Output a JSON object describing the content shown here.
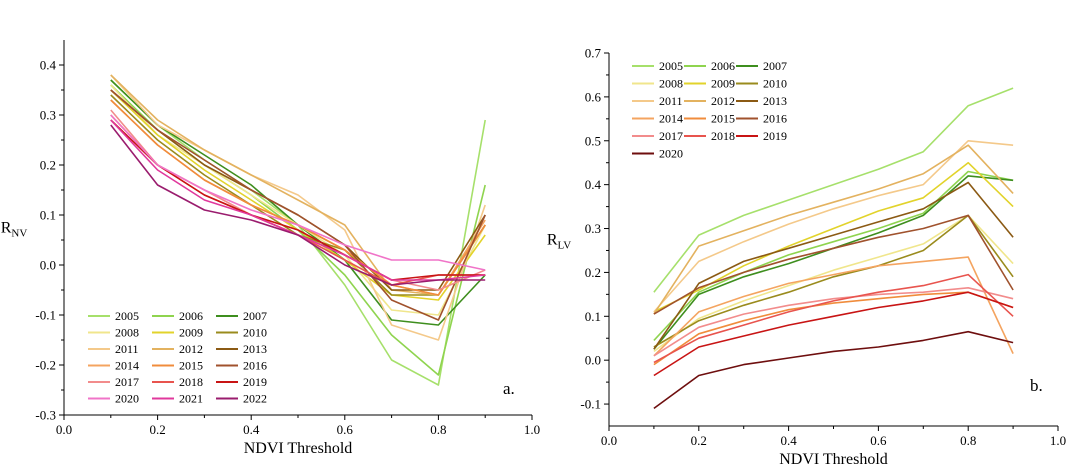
{
  "chart_data": [
    {
      "type": "line",
      "panel_label": "a.",
      "xlabel": "NDVI Threshold",
      "ylabel": "R",
      "ylabel_sub": "NV",
      "xlim": [
        0.0,
        1.0
      ],
      "ylim": [
        -0.3,
        0.45
      ],
      "xticks": [
        "0.0",
        "0.2",
        "0.4",
        "0.6",
        "0.8",
        "1.0"
      ],
      "yticks": [
        "-0.3",
        "-0.2",
        "-0.1",
        "0.0",
        "0.1",
        "0.2",
        "0.3",
        "0.4"
      ],
      "grid": false,
      "legend_position": "bottom-left",
      "legend_columns": 3,
      "x": [
        0.1,
        0.2,
        0.3,
        0.4,
        0.5,
        0.6,
        0.7,
        0.8,
        0.9
      ],
      "series": [
        {
          "name": "2005",
          "color": "#a6e06b",
          "values": [
            0.37,
            0.28,
            0.21,
            0.15,
            0.08,
            -0.04,
            -0.19,
            -0.24,
            0.29
          ]
        },
        {
          "name": "2006",
          "color": "#8fd44f",
          "values": [
            0.36,
            0.27,
            0.2,
            0.14,
            0.07,
            -0.02,
            -0.14,
            -0.22,
            0.16
          ]
        },
        {
          "name": "2007",
          "color": "#3e8e1e",
          "values": [
            0.37,
            0.28,
            0.22,
            0.16,
            0.08,
            0.01,
            -0.11,
            -0.12,
            -0.02
          ]
        },
        {
          "name": "2008",
          "color": "#f0e68c",
          "values": [
            0.36,
            0.26,
            0.2,
            0.14,
            0.08,
            0.02,
            -0.09,
            -0.1,
            0.08
          ]
        },
        {
          "name": "2009",
          "color": "#e2d32b",
          "values": [
            0.35,
            0.26,
            0.19,
            0.13,
            0.07,
            0.01,
            -0.06,
            -0.07,
            0.06
          ]
        },
        {
          "name": "2010",
          "color": "#9a8b1d",
          "values": [
            0.34,
            0.25,
            0.18,
            0.12,
            0.06,
            0.03,
            -0.06,
            -0.06,
            0.08
          ]
        },
        {
          "name": "2011",
          "color": "#f4c98a",
          "values": [
            0.38,
            0.28,
            0.23,
            0.18,
            0.14,
            0.07,
            -0.12,
            -0.15,
            0.12
          ]
        },
        {
          "name": "2012",
          "color": "#e3b25f",
          "values": [
            0.38,
            0.29,
            0.23,
            0.18,
            0.13,
            0.08,
            -0.05,
            -0.06,
            0.08
          ]
        },
        {
          "name": "2013",
          "color": "#8b5a14",
          "values": [
            0.35,
            0.27,
            0.2,
            0.15,
            0.1,
            0.04,
            -0.05,
            -0.05,
            0.1
          ]
        },
        {
          "name": "2014",
          "color": "#f4a460",
          "values": [
            0.33,
            0.24,
            0.17,
            0.12,
            0.08,
            0.03,
            -0.04,
            -0.06,
            0.09
          ]
        },
        {
          "name": "2015",
          "color": "#f08c3c",
          "values": [
            0.33,
            0.24,
            0.17,
            0.12,
            0.08,
            0.03,
            -0.04,
            -0.06,
            0.08
          ]
        },
        {
          "name": "2016",
          "color": "#a0522d",
          "values": [
            0.35,
            0.27,
            0.21,
            0.15,
            0.1,
            0.04,
            -0.07,
            -0.11,
            0.1
          ]
        },
        {
          "name": "2017",
          "color": "#f28c8c",
          "values": [
            0.31,
            0.2,
            0.15,
            0.1,
            0.06,
            0.02,
            -0.03,
            -0.05,
            -0.01
          ]
        },
        {
          "name": "2018",
          "color": "#e8544e",
          "values": [
            0.3,
            0.2,
            0.14,
            0.1,
            0.06,
            0.01,
            -0.04,
            -0.02,
            -0.02
          ]
        },
        {
          "name": "2019",
          "color": "#c81414",
          "values": [
            0.29,
            0.2,
            0.14,
            0.1,
            0.07,
            0.02,
            -0.03,
            -0.02,
            -0.02
          ]
        },
        {
          "name": "2020",
          "color": "#f074c8",
          "values": [
            0.3,
            0.2,
            0.15,
            0.11,
            0.08,
            0.04,
            0.01,
            0.01,
            -0.01
          ]
        },
        {
          "name": "2021",
          "color": "#e0389c",
          "values": [
            0.29,
            0.19,
            0.13,
            0.1,
            0.06,
            0.02,
            -0.03,
            -0.03,
            -0.02
          ]
        },
        {
          "name": "2022",
          "color": "#9a1c6e",
          "values": [
            0.28,
            0.16,
            0.11,
            0.09,
            0.06,
            0.0,
            -0.04,
            -0.03,
            -0.03
          ]
        }
      ]
    },
    {
      "type": "line",
      "panel_label": "b.",
      "xlabel": "NDVI Threshold",
      "ylabel": "R",
      "ylabel_sub": "LV",
      "xlim": [
        0.0,
        1.0
      ],
      "ylim": [
        -0.15,
        0.7
      ],
      "xticks": [
        "0.0",
        "0.2",
        "0.4",
        "0.6",
        "0.8",
        "1.0"
      ],
      "yticks": [
        "-0.1",
        "0.0",
        "0.1",
        "0.2",
        "0.3",
        "0.4",
        "0.5",
        "0.6",
        "0.7"
      ],
      "grid": false,
      "legend_position": "top-left",
      "legend_columns": 3,
      "x": [
        0.1,
        0.2,
        0.3,
        0.4,
        0.5,
        0.6,
        0.7,
        0.8,
        0.9
      ],
      "series": [
        {
          "name": "2005",
          "color": "#a6e06b",
          "values": [
            0.155,
            0.285,
            0.33,
            0.365,
            0.4,
            0.435,
            0.475,
            0.58,
            0.62
          ]
        },
        {
          "name": "2006",
          "color": "#8fd44f",
          "values": [
            0.045,
            0.155,
            0.2,
            0.24,
            0.27,
            0.3,
            0.335,
            0.43,
            0.41
          ]
        },
        {
          "name": "2007",
          "color": "#3e8e1e",
          "values": [
            0.025,
            0.15,
            0.19,
            0.22,
            0.255,
            0.29,
            0.33,
            0.42,
            0.41
          ]
        },
        {
          "name": "2008",
          "color": "#f0e68c",
          "values": [
            0.02,
            0.095,
            0.135,
            0.17,
            0.205,
            0.235,
            0.265,
            0.33,
            0.22
          ]
        },
        {
          "name": "2009",
          "color": "#e2d32b",
          "values": [
            0.11,
            0.16,
            0.215,
            0.26,
            0.3,
            0.34,
            0.37,
            0.45,
            0.35
          ]
        },
        {
          "name": "2010",
          "color": "#9a8b1d",
          "values": [
            0.03,
            0.09,
            0.125,
            0.155,
            0.19,
            0.215,
            0.25,
            0.33,
            0.19
          ]
        },
        {
          "name": "2011",
          "color": "#f4c98a",
          "values": [
            0.11,
            0.225,
            0.27,
            0.31,
            0.345,
            0.375,
            0.4,
            0.5,
            0.49
          ]
        },
        {
          "name": "2012",
          "color": "#e3b25f",
          "values": [
            0.105,
            0.26,
            0.295,
            0.33,
            0.36,
            0.39,
            0.425,
            0.49,
            0.38
          ]
        },
        {
          "name": "2013",
          "color": "#8b5a14",
          "values": [
            0.025,
            0.175,
            0.225,
            0.255,
            0.285,
            0.315,
            0.345,
            0.405,
            0.28
          ]
        },
        {
          "name": "2014",
          "color": "#f4a460",
          "values": [
            0.01,
            0.11,
            0.145,
            0.175,
            0.195,
            0.215,
            0.225,
            0.235,
            0.015
          ]
        },
        {
          "name": "2015",
          "color": "#f08c3c",
          "values": [
            -0.01,
            0.06,
            0.09,
            0.115,
            0.13,
            0.14,
            0.15,
            0.155,
            0.12
          ]
        },
        {
          "name": "2016",
          "color": "#a0522d",
          "values": [
            0.105,
            0.165,
            0.2,
            0.23,
            0.255,
            0.28,
            0.3,
            0.33,
            0.16
          ]
        },
        {
          "name": "2017",
          "color": "#f28c8c",
          "values": [
            0.01,
            0.075,
            0.105,
            0.125,
            0.14,
            0.15,
            0.155,
            0.165,
            0.14
          ]
        },
        {
          "name": "2018",
          "color": "#e8544e",
          "values": [
            -0.005,
            0.05,
            0.08,
            0.11,
            0.135,
            0.155,
            0.17,
            0.195,
            0.1
          ]
        },
        {
          "name": "2019",
          "color": "#c81414",
          "values": [
            -0.035,
            0.03,
            0.055,
            0.08,
            0.1,
            0.12,
            0.135,
            0.155,
            0.12
          ]
        },
        {
          "name": "2020",
          "color": "#6e0e0e",
          "values": [
            -0.11,
            -0.035,
            -0.01,
            0.005,
            0.02,
            0.03,
            0.045,
            0.065,
            0.04
          ]
        }
      ]
    }
  ]
}
